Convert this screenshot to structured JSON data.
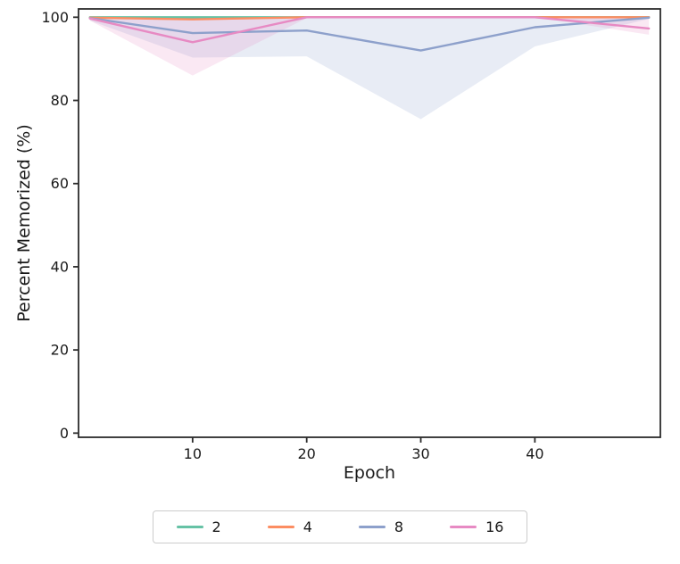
{
  "chart_data": {
    "type": "line",
    "title": "",
    "xlabel": "Epoch",
    "ylabel": "Percent Memorized (%)",
    "xlim": [
      0,
      51
    ],
    "ylim": [
      -1,
      102
    ],
    "xticks": [
      10,
      20,
      30,
      40
    ],
    "yticks": [
      0,
      20,
      40,
      60,
      80,
      100
    ],
    "grid": false,
    "legend_position": "bottom",
    "x": [
      1,
      10,
      20,
      30,
      40,
      50
    ],
    "series": [
      {
        "name": "2",
        "color": "#66c2a5",
        "values": [
          100,
          100,
          100,
          100,
          100,
          100
        ]
      },
      {
        "name": "4",
        "color": "#fc8d62",
        "values": [
          99.9,
          99.5,
          100,
          100,
          100,
          100
        ]
      },
      {
        "name": "8",
        "color": "#8da0cb",
        "values": [
          99.8,
          96.2,
          96.8,
          92.0,
          97.6,
          99.9
        ],
        "band_low": [
          99.2,
          90.3,
          90.6,
          75.5,
          93.0,
          99.6
        ],
        "band_high": [
          100,
          100,
          100,
          100,
          100,
          100
        ]
      },
      {
        "name": "16",
        "color": "#e78ac3",
        "values": [
          99.7,
          94.0,
          100,
          100,
          100,
          97.3
        ],
        "band_low": [
          99.2,
          86.0,
          99.8,
          100,
          100,
          95.8
        ],
        "band_high": [
          100,
          100,
          100,
          100,
          100,
          99.8
        ]
      }
    ]
  },
  "style_colors": {
    "spine": "#2b2b2b",
    "tick": "#2b2b2b",
    "text": "#1a1a1a",
    "band_opacity": "0.2"
  }
}
